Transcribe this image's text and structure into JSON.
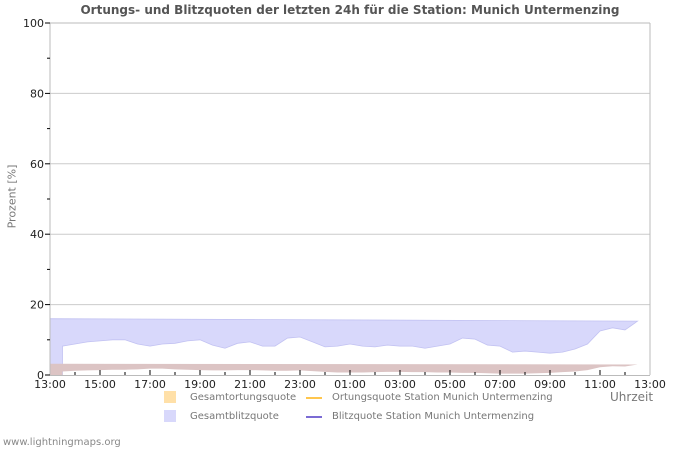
{
  "title": "Ortungs- und Blitzquoten der letzten 24h für die Station: Munich Untermenzing",
  "y_axis_label": "Prozent   [%]",
  "x_axis_unit": "Uhrzeit",
  "footer": "www.lightningmaps.org",
  "legend": [
    {
      "label": "Gesamtortungsquote",
      "kind": "box",
      "color": "#ffe0a8"
    },
    {
      "label": "Ortungsquote Station Munich Untermenzing",
      "kind": "line",
      "color": "#ffc64d"
    },
    {
      "label": "Gesamtblitzquote",
      "kind": "box",
      "color": "#d8d8fb"
    },
    {
      "label": "Blitzquote Station Munich Untermenzing",
      "kind": "line",
      "color": "#7b6bd4"
    }
  ],
  "colors": {
    "blitz_fill": "#d8d8fb",
    "blitz_edge": "#c2c2f2",
    "ortung_fill": "#dcc4c4",
    "grid": "#cccccc",
    "axis": "#bbbbbb"
  },
  "chart_data": {
    "type": "area",
    "title": "Ortungs- und Blitzquoten der letzten 24h für die Station: Munich Untermenzing",
    "xlabel": "Uhrzeit",
    "ylabel": "Prozent [%]",
    "ylim": [
      0,
      100
    ],
    "yticks": [
      0,
      20,
      40,
      60,
      80,
      100
    ],
    "xticks": [
      "13:00",
      "15:00",
      "17:00",
      "19:00",
      "21:00",
      "23:00",
      "01:00",
      "03:00",
      "05:00",
      "07:00",
      "09:00",
      "11:00",
      "13:00"
    ],
    "grid": true,
    "legend_position": "bottom",
    "x": [
      "13:30",
      "14:00",
      "14:30",
      "15:00",
      "15:30",
      "16:00",
      "16:30",
      "17:00",
      "17:30",
      "18:00",
      "18:30",
      "19:00",
      "19:30",
      "20:00",
      "20:30",
      "21:00",
      "21:30",
      "22:00",
      "22:30",
      "23:00",
      "23:30",
      "00:00",
      "00:30",
      "01:00",
      "01:30",
      "02:00",
      "02:30",
      "03:00",
      "03:30",
      "04:00",
      "04:30",
      "05:00",
      "05:30",
      "06:00",
      "06:30",
      "07:00",
      "07:30",
      "08:00",
      "08:30",
      "09:00",
      "09:30",
      "10:00",
      "10:30",
      "11:00",
      "11:30",
      "12:00",
      "12:30",
      "13:00"
    ],
    "series": [
      {
        "name": "Gesamtblitzquote",
        "values": [
          8.2,
          8.8,
          9.4,
          9.7,
          10.0,
          10.0,
          8.8,
          8.2,
          8.8,
          9.0,
          9.7,
          10.0,
          8.5,
          7.6,
          9.0,
          9.4,
          8.2,
          8.2,
          10.5,
          10.8,
          9.4,
          8.0,
          8.2,
          8.8,
          8.2,
          8.0,
          8.5,
          8.2,
          8.2,
          7.6,
          8.2,
          8.8,
          10.5,
          10.2,
          8.5,
          8.2,
          6.5,
          6.8,
          6.5,
          6.2,
          6.5,
          7.4,
          8.8,
          12.5,
          13.4,
          12.8,
          15.3,
          16.0
        ]
      },
      {
        "name": "Gesamtortungsquote",
        "values": [
          1.0,
          1.2,
          1.3,
          1.4,
          1.5,
          1.5,
          1.6,
          1.8,
          1.8,
          1.6,
          1.5,
          1.4,
          1.3,
          1.3,
          1.4,
          1.4,
          1.3,
          1.2,
          1.2,
          1.3,
          1.1,
          0.9,
          0.7,
          0.7,
          0.7,
          0.8,
          0.9,
          0.9,
          0.8,
          0.8,
          0.7,
          0.7,
          0.6,
          0.6,
          0.5,
          0.4,
          0.4,
          0.4,
          0.5,
          0.6,
          0.8,
          1.0,
          1.4,
          2.2,
          2.5,
          2.4,
          3.0,
          3.2
        ]
      },
      {
        "name": "Ortungsquote Station Munich Untermenzing",
        "values": []
      },
      {
        "name": "Blitzquote Station Munich Untermenzing",
        "values": []
      }
    ]
  }
}
